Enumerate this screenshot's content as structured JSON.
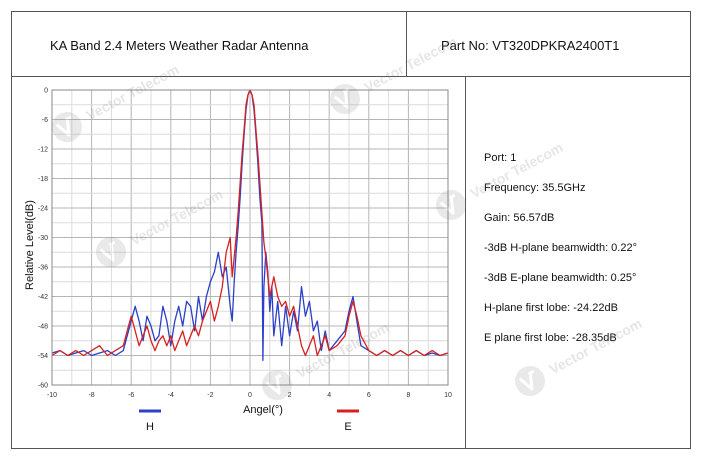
{
  "header": {
    "title": "KA Band 2.4 Meters  Weather Radar Antenna",
    "part_no": "Part No: VT320DPKRA2400T1"
  },
  "specs": [
    "Port: 1",
    "Frequency: 35.5GHz",
    "Gain: 56.57dB",
    "-3dB H-plane beamwidth: 0.22°",
    "-3dB E-plane beamwidth: 0.25°",
    "H-plane first lobe: -24.22dB",
    "E plane first lobe: -28.35dB"
  ],
  "watermark": {
    "text": "Vector Telecom",
    "icon": "vector-telecom-logo-icon"
  },
  "chart_data": {
    "type": "line",
    "title": "",
    "xlabel": "Angel(°)",
    "ylabel": "Relative Level(dB)",
    "xlim": [
      -10,
      10
    ],
    "ylim": [
      -60,
      0
    ],
    "xticks": [
      -10,
      -8,
      -6,
      -4,
      -2,
      0,
      2,
      4,
      6,
      8,
      10
    ],
    "yticks": [
      0,
      -6,
      -12,
      -18,
      -24,
      -30,
      -36,
      -42,
      -48,
      -54,
      -60
    ],
    "grid": true,
    "legend_position": "bottom",
    "series": [
      {
        "name": "H",
        "color": "#2b3fc8",
        "points": [
          [
            -10,
            -53.5
          ],
          [
            -9.6,
            -53
          ],
          [
            -9.2,
            -54
          ],
          [
            -8.8,
            -53.5
          ],
          [
            -8.4,
            -53
          ],
          [
            -8,
            -54
          ],
          [
            -7.6,
            -53.5
          ],
          [
            -7.2,
            -53
          ],
          [
            -6.8,
            -54
          ],
          [
            -6.4,
            -53
          ],
          [
            -6.2,
            -50
          ],
          [
            -6,
            -47
          ],
          [
            -5.8,
            -44
          ],
          [
            -5.6,
            -47
          ],
          [
            -5.4,
            -51
          ],
          [
            -5.2,
            -46
          ],
          [
            -5,
            -48
          ],
          [
            -4.8,
            -51
          ],
          [
            -4.6,
            -50
          ],
          [
            -4.4,
            -44
          ],
          [
            -4.2,
            -47
          ],
          [
            -4,
            -52
          ],
          [
            -3.8,
            -47
          ],
          [
            -3.6,
            -44
          ],
          [
            -3.4,
            -48
          ],
          [
            -3.2,
            -43
          ],
          [
            -3,
            -44
          ],
          [
            -2.8,
            -49
          ],
          [
            -2.6,
            -42
          ],
          [
            -2.4,
            -47
          ],
          [
            -2.2,
            -42
          ],
          [
            -2,
            -39
          ],
          [
            -1.8,
            -37
          ],
          [
            -1.6,
            -33
          ],
          [
            -1.4,
            -38
          ],
          [
            -1.2,
            -36
          ],
          [
            -1,
            -44
          ],
          [
            -0.9,
            -47
          ],
          [
            -0.8,
            -39
          ],
          [
            -0.7,
            -33
          ],
          [
            -0.6,
            -28
          ],
          [
            -0.5,
            -22
          ],
          [
            -0.4,
            -15
          ],
          [
            -0.3,
            -9
          ],
          [
            -0.2,
            -4
          ],
          [
            -0.1,
            -1
          ],
          [
            0,
            0
          ],
          [
            0.1,
            -1
          ],
          [
            0.2,
            -4
          ],
          [
            0.3,
            -9
          ],
          [
            0.4,
            -15
          ],
          [
            0.5,
            -22
          ],
          [
            0.6,
            -27
          ],
          [
            0.65,
            -55
          ],
          [
            0.7,
            -40
          ],
          [
            0.8,
            -33
          ],
          [
            0.9,
            -37
          ],
          [
            1,
            -45
          ],
          [
            1.1,
            -40
          ],
          [
            1.2,
            -50
          ],
          [
            1.4,
            -43
          ],
          [
            1.6,
            -52
          ],
          [
            1.8,
            -44
          ],
          [
            2,
            -50
          ],
          [
            2.2,
            -45
          ],
          [
            2.4,
            -49
          ],
          [
            2.6,
            -40
          ],
          [
            2.8,
            -46
          ],
          [
            3,
            -43
          ],
          [
            3.2,
            -49
          ],
          [
            3.4,
            -47
          ],
          [
            3.6,
            -53
          ],
          [
            3.8,
            -49
          ],
          [
            4,
            -53
          ],
          [
            4.4,
            -51
          ],
          [
            4.8,
            -49
          ],
          [
            5,
            -45
          ],
          [
            5.2,
            -42
          ],
          [
            5.4,
            -47
          ],
          [
            5.6,
            -52
          ],
          [
            6,
            -53
          ],
          [
            6.4,
            -54
          ],
          [
            6.8,
            -53
          ],
          [
            7.2,
            -54
          ],
          [
            7.6,
            -53
          ],
          [
            8,
            -54
          ],
          [
            8.4,
            -53
          ],
          [
            8.8,
            -54
          ],
          [
            9.2,
            -53.5
          ],
          [
            9.6,
            -54
          ],
          [
            10,
            -53.5
          ]
        ]
      },
      {
        "name": "E",
        "color": "#d82020",
        "points": [
          [
            -10,
            -54
          ],
          [
            -9.6,
            -53
          ],
          [
            -9.2,
            -54
          ],
          [
            -8.8,
            -53
          ],
          [
            -8.4,
            -54
          ],
          [
            -8,
            -53
          ],
          [
            -7.6,
            -52
          ],
          [
            -7.2,
            -54
          ],
          [
            -6.8,
            -53
          ],
          [
            -6.4,
            -52
          ],
          [
            -6.2,
            -49
          ],
          [
            -6,
            -46
          ],
          [
            -5.8,
            -49
          ],
          [
            -5.6,
            -52
          ],
          [
            -5.4,
            -50
          ],
          [
            -5.2,
            -48
          ],
          [
            -5,
            -51
          ],
          [
            -4.8,
            -53
          ],
          [
            -4.6,
            -51
          ],
          [
            -4.4,
            -50
          ],
          [
            -4.2,
            -52
          ],
          [
            -4,
            -50
          ],
          [
            -3.8,
            -53
          ],
          [
            -3.6,
            -51
          ],
          [
            -3.4,
            -49
          ],
          [
            -3.2,
            -52
          ],
          [
            -3,
            -50
          ],
          [
            -2.8,
            -48
          ],
          [
            -2.6,
            -50
          ],
          [
            -2.4,
            -47
          ],
          [
            -2.2,
            -45
          ],
          [
            -2,
            -43
          ],
          [
            -1.8,
            -47
          ],
          [
            -1.6,
            -44
          ],
          [
            -1.4,
            -40
          ],
          [
            -1.2,
            -33
          ],
          [
            -1,
            -30
          ],
          [
            -0.9,
            -38
          ],
          [
            -0.8,
            -34
          ],
          [
            -0.7,
            -30
          ],
          [
            -0.6,
            -25
          ],
          [
            -0.5,
            -19
          ],
          [
            -0.4,
            -13
          ],
          [
            -0.3,
            -8
          ],
          [
            -0.2,
            -3
          ],
          [
            -0.1,
            -1
          ],
          [
            0,
            0
          ],
          [
            0.1,
            -1
          ],
          [
            0.2,
            -3
          ],
          [
            0.3,
            -8
          ],
          [
            0.4,
            -13
          ],
          [
            0.5,
            -19
          ],
          [
            0.6,
            -25
          ],
          [
            0.7,
            -31
          ],
          [
            0.8,
            -34
          ],
          [
            0.9,
            -38
          ],
          [
            1,
            -42
          ],
          [
            1.2,
            -38
          ],
          [
            1.4,
            -42
          ],
          [
            1.6,
            -44
          ],
          [
            1.8,
            -43
          ],
          [
            2,
            -46
          ],
          [
            2.2,
            -44
          ],
          [
            2.4,
            -48
          ],
          [
            2.6,
            -52
          ],
          [
            2.8,
            -54
          ],
          [
            3,
            -52
          ],
          [
            3.2,
            -50
          ],
          [
            3.4,
            -54
          ],
          [
            3.6,
            -52
          ],
          [
            3.8,
            -50
          ],
          [
            4,
            -53
          ],
          [
            4.4,
            -52
          ],
          [
            4.8,
            -50
          ],
          [
            5,
            -46
          ],
          [
            5.2,
            -43
          ],
          [
            5.4,
            -46
          ],
          [
            5.6,
            -50
          ],
          [
            6,
            -53
          ],
          [
            6.4,
            -54
          ],
          [
            6.8,
            -53
          ],
          [
            7.2,
            -54
          ],
          [
            7.6,
            -53
          ],
          [
            8,
            -54
          ],
          [
            8.4,
            -53
          ],
          [
            8.8,
            -54
          ],
          [
            9.2,
            -53
          ],
          [
            9.6,
            -54
          ],
          [
            10,
            -53.5
          ]
        ]
      }
    ]
  }
}
